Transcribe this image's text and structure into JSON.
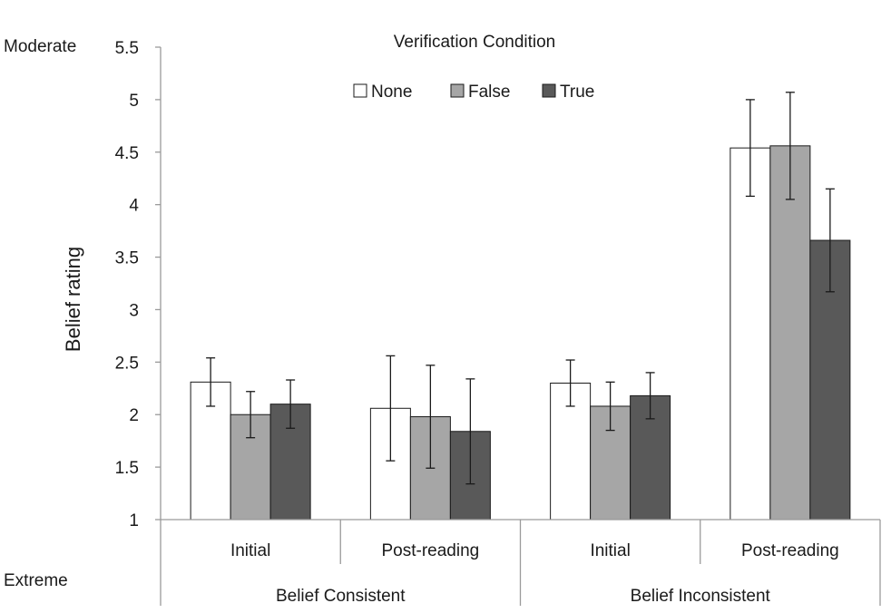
{
  "chart_data": {
    "type": "bar",
    "legend_title": "Verification Condition",
    "legend_position": "top-center",
    "ylabel": "Belief rating",
    "y_top_annotation": "Moderate",
    "y_bottom_annotation": "Extreme",
    "ylim": [
      1,
      5.5
    ],
    "yticks": [
      "1",
      "1.5",
      "2",
      "2.5",
      "3",
      "3.5",
      "4",
      "4.5",
      "5",
      "5.5"
    ],
    "grid": false,
    "groups": [
      "Belief Consistent",
      "Belief Inconsistent"
    ],
    "categories": [
      "Initial",
      "Post-reading",
      "Initial",
      "Post-reading"
    ],
    "series": [
      {
        "name": "None",
        "color": "#ffffff",
        "values": [
          2.31,
          2.06,
          2.3,
          4.54
        ],
        "error": [
          0.23,
          0.5,
          0.22,
          0.46
        ]
      },
      {
        "name": "False",
        "color": "#a6a6a6",
        "values": [
          2.0,
          1.98,
          2.08,
          4.56
        ],
        "error": [
          0.22,
          0.49,
          0.23,
          0.51
        ]
      },
      {
        "name": "True",
        "color": "#595959",
        "values": [
          2.1,
          1.84,
          2.18,
          3.66
        ],
        "error": [
          0.23,
          0.5,
          0.22,
          0.49
        ]
      }
    ]
  }
}
